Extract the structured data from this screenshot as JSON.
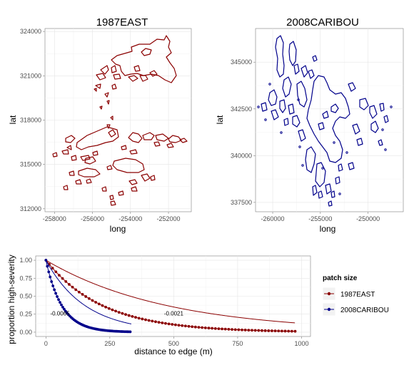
{
  "chart_data": [
    {
      "type": "map",
      "title": "1987EAST",
      "xlabel": "long",
      "ylabel": "lat",
      "xlim": [
        -258500,
        -250800
      ],
      "ylim": [
        311800,
        324200
      ],
      "xticks": [
        -258000,
        -256000,
        -254000,
        -252000
      ],
      "xtick_labels": [
        "-258000",
        "-256000",
        "-254000",
        "-252000"
      ],
      "yticks": [
        312000,
        315000,
        318000,
        321000,
        324000
      ],
      "ytick_labels": [
        "312000",
        "315000",
        "318000",
        "321000",
        "324000"
      ],
      "line_color": "#8b0000",
      "grid": true
    },
    {
      "type": "map",
      "title": "2008CARIBOU",
      "xlabel": "long",
      "ylabel": "lat",
      "xlim": [
        -261800,
        -246300
      ],
      "ylim": [
        337000,
        346800
      ],
      "xticks": [
        -260000,
        -255000,
        -250000
      ],
      "xtick_labels": [
        "-260000",
        "-255000",
        "-250000"
      ],
      "yticks": [
        337500,
        340000,
        342500,
        345000
      ],
      "ytick_labels": [
        "337500",
        "340000",
        "342500",
        "345000"
      ],
      "line_color": "#00008b",
      "grid": true
    },
    {
      "type": "line",
      "xlabel": "distance to edge (m)",
      "ylabel": "proportion high-severity",
      "xlim": [
        -40,
        1035
      ],
      "ylim": [
        -0.06,
        1.06
      ],
      "xticks": [
        0,
        250,
        500,
        750,
        1000
      ],
      "xtick_labels": [
        "0",
        "250",
        "500",
        "750",
        "1000"
      ],
      "yticks": [
        0,
        0.25,
        0.5,
        0.75,
        1
      ],
      "ytick_labels": [
        "0.00",
        "0.25",
        "0.50",
        "0.75",
        "1.00"
      ],
      "legend_title": "patch size",
      "legend_position": "right",
      "series": [
        {
          "name": "1987EAST",
          "color": "#8b0000",
          "rate": 0.0045,
          "x_max": 975,
          "step": 13,
          "fit_rate": 0.0021,
          "fit_label": "-0.0021"
        },
        {
          "name": "2008CARIBOU",
          "color": "#00008b",
          "rate": 0.016,
          "x_max": 335,
          "step": 5.5,
          "fit_rate": 0.0065,
          "fit_label": "-0.0065"
        }
      ],
      "annotations": [
        {
          "text": "-0.0065",
          "x": 55,
          "y": 0.23
        },
        {
          "text": "-0.0021",
          "x": 500,
          "y": 0.23
        }
      ]
    }
  ]
}
